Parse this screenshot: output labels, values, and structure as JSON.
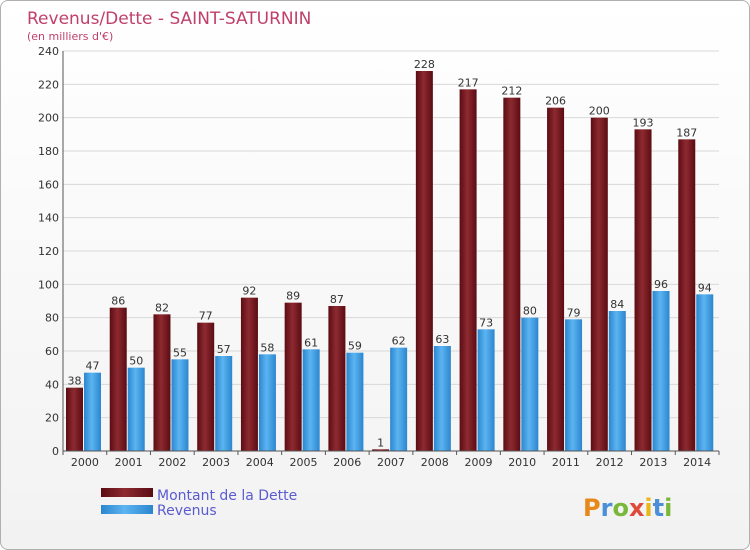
{
  "chart_data": {
    "type": "bar",
    "title": "Revenus/Dette - SAINT-SATURNIN",
    "subtitle": "(en milliers d'€)",
    "categories": [
      "2000",
      "2001",
      "2002",
      "2003",
      "2004",
      "2005",
      "2006",
      "2007",
      "2008",
      "2009",
      "2010",
      "2011",
      "2012",
      "2013",
      "2014"
    ],
    "series": [
      {
        "name": "Montant de la Dette",
        "color": "#7a1a22",
        "values": [
          38,
          86,
          82,
          77,
          92,
          89,
          87,
          1,
          228,
          217,
          212,
          206,
          200,
          193,
          187
        ]
      },
      {
        "name": "Revenus",
        "color": "#3d9be0",
        "values": [
          47,
          50,
          55,
          57,
          58,
          61,
          59,
          62,
          63,
          73,
          80,
          79,
          84,
          96,
          94
        ]
      }
    ],
    "ylim": [
      0,
      240
    ],
    "yticks": [
      0,
      20,
      40,
      60,
      80,
      100,
      120,
      140,
      160,
      180,
      200,
      220,
      240
    ],
    "grid": true,
    "legend_position": "bottom-left"
  },
  "logo": {
    "text": "Proxiti"
  }
}
